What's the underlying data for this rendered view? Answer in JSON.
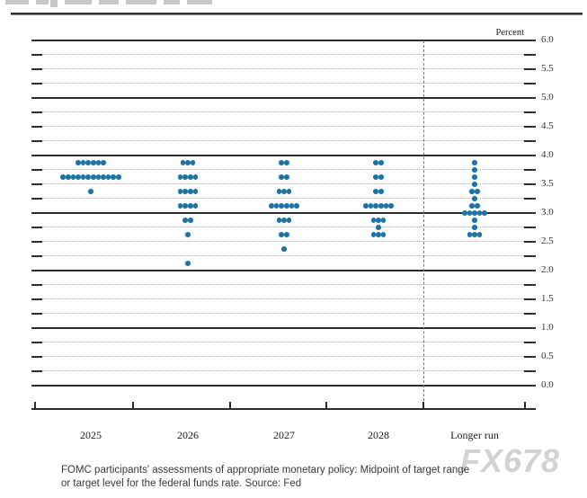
{
  "chart_data": {
    "type": "scatter",
    "subtype": "fomc-dot-plot",
    "unit_label": "Percent",
    "ylim": [
      0.0,
      6.0
    ],
    "grid": {
      "minor_step": 0.25,
      "major_step": 1.0,
      "label_step": 0.5
    },
    "y_tick_labels": [
      "6.0",
      "5.5",
      "5.0",
      "4.5",
      "4.0",
      "3.5",
      "3.0",
      "2.5",
      "2.0",
      "1.5",
      "1.0",
      "0.5",
      "0.0"
    ],
    "categories": [
      "2025",
      "2026",
      "2027",
      "2028",
      "Longer run"
    ],
    "separator_before_category": "Longer run",
    "series": [
      {
        "name": "2025",
        "dots": [
          {
            "value": 3.875,
            "count": 6
          },
          {
            "value": 3.625,
            "count": 12
          },
          {
            "value": 3.375,
            "count": 1
          }
        ]
      },
      {
        "name": "2026",
        "dots": [
          {
            "value": 3.875,
            "count": 3
          },
          {
            "value": 3.625,
            "count": 4
          },
          {
            "value": 3.375,
            "count": 4
          },
          {
            "value": 3.125,
            "count": 4
          },
          {
            "value": 2.875,
            "count": 2
          },
          {
            "value": 2.625,
            "count": 1
          },
          {
            "value": 2.125,
            "count": 1
          }
        ]
      },
      {
        "name": "2027",
        "dots": [
          {
            "value": 3.875,
            "count": 2
          },
          {
            "value": 3.625,
            "count": 2
          },
          {
            "value": 3.375,
            "count": 3
          },
          {
            "value": 3.125,
            "count": 6
          },
          {
            "value": 2.875,
            "count": 3
          },
          {
            "value": 2.625,
            "count": 2
          },
          {
            "value": 2.375,
            "count": 1
          }
        ]
      },
      {
        "name": "2028",
        "dots": [
          {
            "value": 3.875,
            "count": 2
          },
          {
            "value": 3.625,
            "count": 2
          },
          {
            "value": 3.375,
            "count": 2
          },
          {
            "value": 3.125,
            "count": 6
          },
          {
            "value": 2.875,
            "count": 3
          },
          {
            "value": 2.75,
            "count": 1
          },
          {
            "value": 2.625,
            "count": 3
          }
        ]
      },
      {
        "name": "Longer run",
        "dots": [
          {
            "value": 3.875,
            "count": 1
          },
          {
            "value": 3.75,
            "count": 1
          },
          {
            "value": 3.625,
            "count": 1
          },
          {
            "value": 3.5,
            "count": 1
          },
          {
            "value": 3.375,
            "count": 2
          },
          {
            "value": 3.25,
            "count": 1
          },
          {
            "value": 3.125,
            "count": 2
          },
          {
            "value": 3.0,
            "count": 5
          },
          {
            "value": 2.875,
            "count": 1
          },
          {
            "value": 2.75,
            "count": 1
          },
          {
            "value": 2.625,
            "count": 3
          }
        ]
      }
    ],
    "colors": {
      "dot": "#1b74a8",
      "grid_major": "#2b2b2b",
      "grid_minor": "#b3b3b3",
      "separator": "#777777"
    }
  },
  "caption": {
    "line1": "FOMC participants' assessments of appropriate monetary policy: Midpoint of target range",
    "line2": "or target level for the federal funds rate. Source: Fed"
  },
  "watermark": "FX678"
}
